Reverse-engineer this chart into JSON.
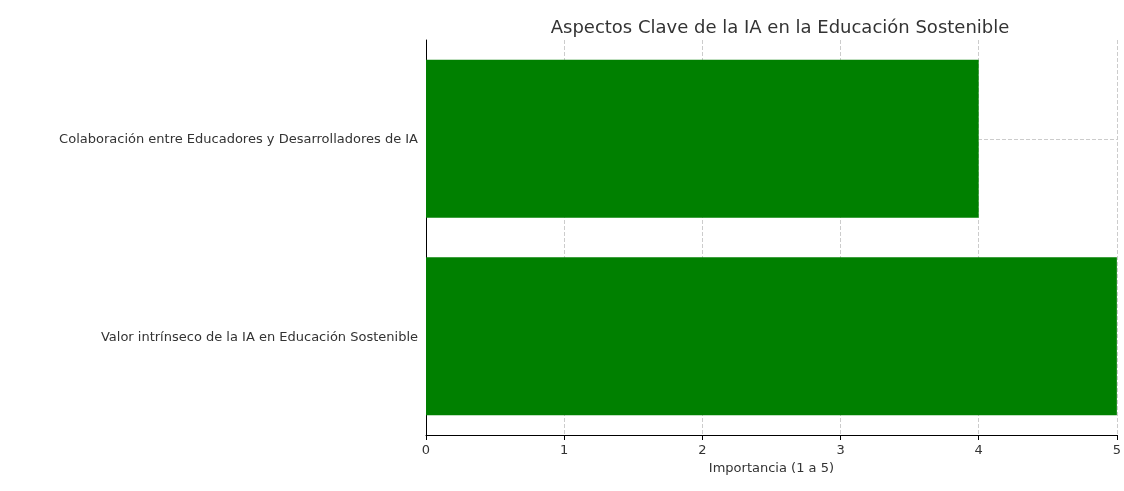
{
  "chart_data": {
    "type": "bar",
    "orientation": "horizontal",
    "title": "Aspectos Clave de la IA en la Educación Sostenible",
    "xlabel": "Importancia (1 a 5)",
    "categories": [
      "Colaboración entre Educadores y Desarrolladores de IA",
      "Valor intrínseco de la IA en Educación Sostenible"
    ],
    "values": [
      4,
      5
    ],
    "color": "#008000",
    "xlim": [
      0,
      5
    ],
    "xticks": [
      0,
      1,
      2,
      3,
      4,
      5
    ],
    "grid": true
  }
}
